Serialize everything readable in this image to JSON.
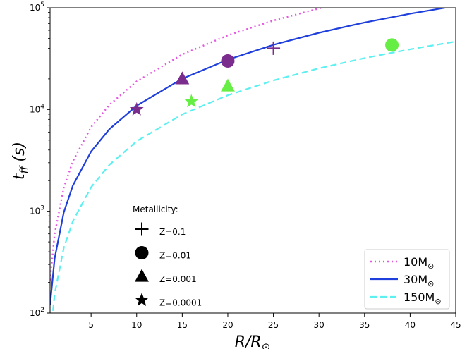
{
  "chart_data": {
    "type": "line",
    "xlabel": "R/R",
    "xlabel_sub": "⊙",
    "ylabel": "t",
    "ylabel_sub": "ff",
    "ylabel_unit": "(s)",
    "xlim": [
      0.5,
      45
    ],
    "ylim": [
      100,
      100000
    ],
    "yscale": "log",
    "xticks": [
      5,
      10,
      15,
      20,
      25,
      30,
      35,
      40,
      45
    ],
    "yticks": [
      {
        "value": 100,
        "base": "10",
        "exp": "2"
      },
      {
        "value": 1000,
        "base": "10",
        "exp": "3"
      },
      {
        "value": 10000,
        "base": "10",
        "exp": "4"
      },
      {
        "value": 100000,
        "base": "10",
        "exp": "5"
      }
    ],
    "grid": false,
    "legend_position": "lower-right",
    "series": [
      {
        "name": "10M",
        "name_sub": "⊙",
        "mass": 10,
        "color": "#e455e0",
        "style": "dotted",
        "x": [
          0.5,
          1,
          2,
          3,
          5,
          7,
          10,
          15,
          20,
          25,
          30,
          35
        ],
        "y": [
          210,
          600,
          1700,
          3100,
          6700,
          11100,
          18900,
          34800,
          53600,
          74900,
          98400,
          124000
        ]
      },
      {
        "name": "30M",
        "name_sub": "⊙",
        "mass": 30,
        "color": "#1f3fdc",
        "style": "solid",
        "x": [
          0.5,
          1,
          2,
          3,
          5,
          7,
          10,
          15,
          20,
          25,
          30,
          35,
          40,
          45
        ],
        "y": [
          121,
          345,
          975,
          1790,
          3860,
          6400,
          10900,
          20100,
          30900,
          43200,
          56800,
          71600,
          87500,
          104000
        ]
      },
      {
        "name": "150M",
        "name_sub": "⊙",
        "mass": 150,
        "color": "#5cf0f0",
        "style": "dashed",
        "x": [
          0.5,
          1,
          2,
          3,
          5,
          7,
          10,
          15,
          20,
          25,
          30,
          35,
          40,
          45
        ],
        "y": [
          54,
          154,
          436,
          800,
          1720,
          2860,
          4880,
          8960,
          13800,
          19300,
          25400,
          32000,
          39100,
          46600
        ]
      }
    ],
    "points": [
      {
        "x": 10,
        "y": 10000,
        "marker": "star",
        "color": "#7b2d8e"
      },
      {
        "x": 15,
        "y": 20000,
        "marker": "triangle",
        "color": "#7b2d8e"
      },
      {
        "x": 20,
        "y": 30000,
        "marker": "circle",
        "color": "#7b2d8e"
      },
      {
        "x": 25,
        "y": 40000,
        "marker": "plus",
        "color": "#7b2d8e"
      },
      {
        "x": 16,
        "y": 12000,
        "marker": "star",
        "color": "#66ee44"
      },
      {
        "x": 20,
        "y": 17000,
        "marker": "triangle",
        "color": "#66ee44"
      },
      {
        "x": 38,
        "y": 43000,
        "marker": "circle",
        "color": "#66ee44"
      }
    ],
    "marker_key": {
      "title": "Metallicity:",
      "entries": [
        {
          "marker": "plus",
          "label": "Z=0.1"
        },
        {
          "marker": "circle",
          "label": "Z=0.01"
        },
        {
          "marker": "triangle",
          "label": "Z=0.001"
        },
        {
          "marker": "star",
          "label": "Z=0.0001"
        }
      ]
    }
  }
}
